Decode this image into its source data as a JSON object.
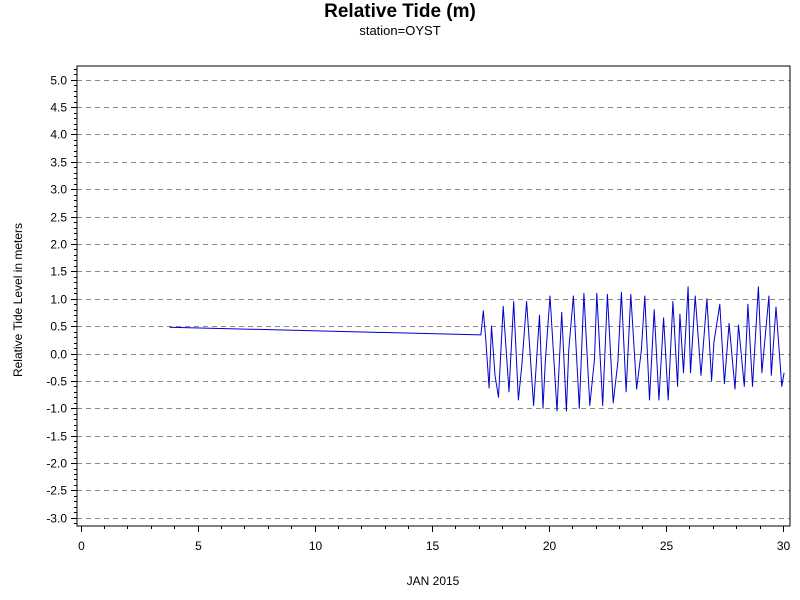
{
  "chart_data": {
    "type": "line",
    "title": "Relative Tide (m)",
    "subtitle": "station=OYST",
    "xlabel": "JAN 2015",
    "ylabel": "Relative Tide Level in meters",
    "xlim": [
      -0.15,
      30.3
    ],
    "ylim": [
      -3.15,
      5.25
    ],
    "xticks": [
      0,
      5,
      10,
      15,
      20,
      25,
      30
    ],
    "xtick_labels": [
      "0",
      "5",
      "10",
      "15",
      "20",
      "25",
      "30"
    ],
    "yticks": [
      5.0,
      4.5,
      4.0,
      3.5,
      3.0,
      2.5,
      2.0,
      1.5,
      1.0,
      0.5,
      0.0,
      -0.5,
      -1.0,
      -1.5,
      -2.0,
      -2.5,
      -3.0
    ],
    "ytick_labels": [
      "5.0",
      "4.5",
      "4.0",
      "3.5",
      "3.0",
      "2.5",
      "2.0",
      "1.5",
      "1.0",
      "0.5",
      "0.0",
      "-0.5",
      "-1.0",
      "-1.5",
      "-2.0",
      "-2.5",
      "-3.0"
    ],
    "grid": "horizontal dashed",
    "line_color": "#0000cc",
    "series": [
      {
        "x": [
          3.8,
          17.1,
          17.1,
          17.2,
          17.3,
          17.45,
          17.55,
          17.7,
          17.85,
          18.05,
          18.3,
          18.5,
          18.7,
          18.85,
          19.05,
          19.35,
          19.6,
          19.75,
          19.85,
          20.05,
          20.35,
          20.55,
          20.75,
          20.85,
          21.05,
          21.3,
          21.5,
          21.75,
          21.95,
          22.05,
          22.3,
          22.5,
          22.75,
          22.95,
          23.1,
          23.3,
          23.5,
          23.75,
          23.95,
          24.1,
          24.3,
          24.5,
          24.7,
          24.9,
          25.1,
          25.3,
          25.5,
          25.6,
          25.75,
          25.95,
          26.05,
          26.25,
          26.5,
          26.75,
          26.95,
          27.05,
          27.3,
          27.5,
          27.7,
          27.95,
          28.1,
          28.35,
          28.5,
          28.7,
          28.95,
          29.1,
          29.4,
          29.5,
          29.7,
          29.95,
          30.05
        ],
        "y": [
          0.48,
          0.34,
          0.34,
          0.78,
          0.3,
          -0.63,
          0.5,
          -0.4,
          -0.8,
          0.86,
          -0.7,
          0.95,
          -0.85,
          -0.2,
          0.95,
          -0.95,
          0.7,
          -1.0,
          -0.15,
          1.05,
          -1.05,
          0.75,
          -1.05,
          0.05,
          1.05,
          -1.0,
          1.1,
          -0.95,
          -0.1,
          1.1,
          -0.95,
          1.08,
          -0.9,
          -0.15,
          1.12,
          -0.7,
          1.08,
          -0.65,
          0.05,
          1.05,
          -0.85,
          0.8,
          -0.85,
          0.65,
          -0.85,
          0.95,
          -0.6,
          0.72,
          -0.35,
          1.22,
          -0.35,
          1.05,
          -0.4,
          1.0,
          -0.5,
          0.2,
          0.9,
          -0.55,
          0.55,
          -0.65,
          0.52,
          -0.6,
          0.9,
          -0.6,
          1.22,
          -0.35,
          1.05,
          -0.4,
          0.85,
          -0.6,
          -0.35
        ]
      }
    ]
  }
}
